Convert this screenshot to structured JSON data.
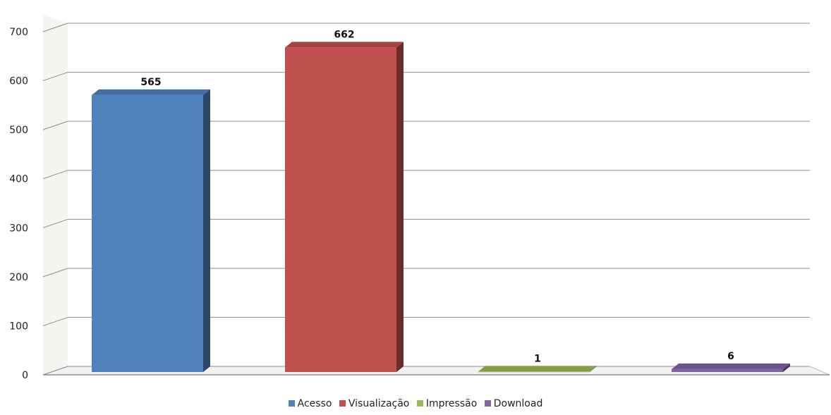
{
  "chart_data": {
    "type": "bar",
    "categories": [
      "Acesso",
      "Visualização",
      "Impressão",
      "Download"
    ],
    "values": [
      565,
      662,
      1,
      6
    ],
    "colors": [
      "#4f81bd",
      "#c0504d",
      "#9bbb59",
      "#8064a2"
    ],
    "title": "",
    "xlabel": "",
    "ylabel": "",
    "ylim": [
      0,
      700
    ],
    "yticks": [
      0,
      100,
      200,
      300,
      400,
      500,
      600,
      700
    ],
    "data_labels": [
      "565",
      "662",
      "1",
      "6"
    ],
    "grid": true,
    "style": "3d",
    "legend_position": "bottom"
  }
}
